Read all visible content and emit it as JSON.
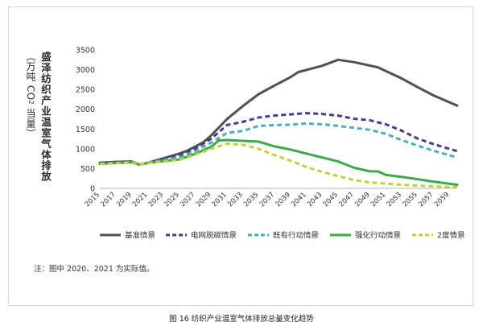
{
  "figure": {
    "ylabel_title": "盛泽纺织产业温室气体排放",
    "ylabel_unit_pre": "（万吨 CO",
    "ylabel_unit_sub": "2",
    "ylabel_unit_post": " 当量）",
    "note": "注：图中 2020、2021 为实际值。",
    "caption": "图 16 纺织产业温室气体排放总量变化趋势"
  },
  "chart_data": {
    "type": "line",
    "xlim": [
      2015,
      2060
    ],
    "ylim": [
      0,
      3500
    ],
    "yticks": [
      0,
      500,
      1000,
      1500,
      2000,
      2500,
      3000,
      3500
    ],
    "xticks": [
      2015,
      2017,
      2019,
      2021,
      2023,
      2025,
      2027,
      2029,
      2031,
      2033,
      2035,
      2037,
      2039,
      2041,
      2043,
      2045,
      2047,
      2049,
      2051,
      2053,
      2055,
      2057,
      2059
    ],
    "legend_placement": "bottom",
    "grid": false,
    "series": [
      {
        "name": "基准情景",
        "color": "#505050",
        "dash": "solid",
        "points": [
          [
            2015,
            650
          ],
          [
            2017,
            670
          ],
          [
            2019,
            680
          ],
          [
            2020,
            600
          ],
          [
            2021,
            640
          ],
          [
            2023,
            760
          ],
          [
            2025,
            880
          ],
          [
            2026,
            950
          ],
          [
            2028,
            1160
          ],
          [
            2029,
            1330
          ],
          [
            2031,
            1750
          ],
          [
            2033,
            2080
          ],
          [
            2035,
            2380
          ],
          [
            2037,
            2600
          ],
          [
            2039,
            2810
          ],
          [
            2040,
            2940
          ],
          [
            2043,
            3100
          ],
          [
            2045,
            3250
          ],
          [
            2047,
            3190
          ],
          [
            2050,
            3060
          ],
          [
            2053,
            2780
          ],
          [
            2055,
            2560
          ],
          [
            2057,
            2350
          ],
          [
            2060,
            2090
          ]
        ]
      },
      {
        "name": "电网脱碳情景",
        "color": "#4a3b8f",
        "dash": "dash",
        "points": [
          [
            2015,
            640
          ],
          [
            2017,
            660
          ],
          [
            2019,
            670
          ],
          [
            2020,
            600
          ],
          [
            2021,
            640
          ],
          [
            2023,
            740
          ],
          [
            2025,
            830
          ],
          [
            2027,
            1000
          ],
          [
            2029,
            1250
          ],
          [
            2031,
            1600
          ],
          [
            2033,
            1680
          ],
          [
            2035,
            1790
          ],
          [
            2037,
            1840
          ],
          [
            2039,
            1870
          ],
          [
            2041,
            1900
          ],
          [
            2043,
            1880
          ],
          [
            2045,
            1840
          ],
          [
            2047,
            1760
          ],
          [
            2049,
            1720
          ],
          [
            2051,
            1620
          ],
          [
            2053,
            1460
          ],
          [
            2055,
            1260
          ],
          [
            2057,
            1120
          ],
          [
            2060,
            940
          ]
        ]
      },
      {
        "name": "既有行动情景",
        "color": "#4ab0b0",
        "dash": "dash",
        "points": [
          [
            2015,
            620
          ],
          [
            2017,
            640
          ],
          [
            2019,
            650
          ],
          [
            2020,
            600
          ],
          [
            2021,
            640
          ],
          [
            2023,
            720
          ],
          [
            2025,
            780
          ],
          [
            2027,
            940
          ],
          [
            2029,
            1150
          ],
          [
            2031,
            1400
          ],
          [
            2033,
            1450
          ],
          [
            2035,
            1580
          ],
          [
            2037,
            1600
          ],
          [
            2039,
            1610
          ],
          [
            2041,
            1640
          ],
          [
            2043,
            1620
          ],
          [
            2045,
            1580
          ],
          [
            2047,
            1530
          ],
          [
            2049,
            1480
          ],
          [
            2051,
            1380
          ],
          [
            2053,
            1220
          ],
          [
            2055,
            1080
          ],
          [
            2057,
            950
          ],
          [
            2060,
            780
          ]
        ]
      },
      {
        "name": "强化行动情景",
        "color": "#3aaa4a",
        "dash": "solid",
        "points": [
          [
            2015,
            620
          ],
          [
            2017,
            640
          ],
          [
            2019,
            660
          ],
          [
            2020,
            600
          ],
          [
            2021,
            640
          ],
          [
            2023,
            690
          ],
          [
            2025,
            730
          ],
          [
            2027,
            870
          ],
          [
            2029,
            1050
          ],
          [
            2030,
            1210
          ],
          [
            2031,
            1220
          ],
          [
            2033,
            1200
          ],
          [
            2035,
            1180
          ],
          [
            2037,
            1060
          ],
          [
            2039,
            980
          ],
          [
            2041,
            880
          ],
          [
            2043,
            780
          ],
          [
            2045,
            680
          ],
          [
            2047,
            520
          ],
          [
            2049,
            430
          ],
          [
            2050,
            430
          ],
          [
            2051,
            340
          ],
          [
            2053,
            290
          ],
          [
            2055,
            230
          ],
          [
            2057,
            170
          ],
          [
            2060,
            90
          ]
        ]
      },
      {
        "name": "2度情景",
        "color": "#c7cf3a",
        "dash": "dash",
        "points": [
          [
            2015,
            620
          ],
          [
            2017,
            640
          ],
          [
            2019,
            660
          ],
          [
            2020,
            600
          ],
          [
            2021,
            640
          ],
          [
            2023,
            680
          ],
          [
            2025,
            720
          ],
          [
            2027,
            850
          ],
          [
            2029,
            1000
          ],
          [
            2031,
            1130
          ],
          [
            2033,
            1100
          ],
          [
            2035,
            1000
          ],
          [
            2037,
            840
          ],
          [
            2039,
            700
          ],
          [
            2041,
            540
          ],
          [
            2043,
            420
          ],
          [
            2045,
            310
          ],
          [
            2047,
            210
          ],
          [
            2049,
            150
          ],
          [
            2051,
            120
          ],
          [
            2053,
            90
          ],
          [
            2055,
            70
          ],
          [
            2057,
            50
          ],
          [
            2060,
            30
          ]
        ]
      }
    ]
  }
}
